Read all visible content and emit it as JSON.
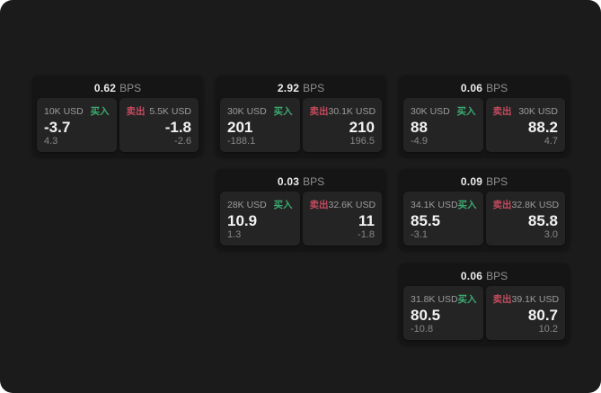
{
  "labels": {
    "bps": "BPS",
    "buy": "买入",
    "sell": "卖出"
  },
  "colors": {
    "page_bg": "#1b1b1b",
    "card_bg": "#151515",
    "panel_bg": "#242424",
    "buy_accent": "#3caa70",
    "sell_accent": "#c54a5e",
    "primary_text": "#f2f2f2",
    "muted_text": "#8f8f8f"
  },
  "cards": [
    {
      "col": 0,
      "row": 0,
      "bps_value": "0.62",
      "buy": {
        "size": "10K USD",
        "price": "-3.7",
        "delta": "4.3"
      },
      "sell": {
        "size": "5.5K USD",
        "price": "-1.8",
        "delta": "-2.6"
      }
    },
    {
      "col": 1,
      "row": 0,
      "bps_value": "2.92",
      "buy": {
        "size": "30K USD",
        "price": "201",
        "delta": "-188.1"
      },
      "sell": {
        "size": "30.1K USD",
        "price": "210",
        "delta": "196.5"
      }
    },
    {
      "col": 2,
      "row": 0,
      "bps_value": "0.06",
      "buy": {
        "size": "30K USD",
        "price": "88",
        "delta": "-4.9"
      },
      "sell": {
        "size": "30K USD",
        "price": "88.2",
        "delta": "4.7"
      }
    },
    {
      "col": 1,
      "row": 1,
      "bps_value": "0.03",
      "buy": {
        "size": "28K USD",
        "price": "10.9",
        "delta": "1.3"
      },
      "sell": {
        "size": "32.6K USD",
        "price": "11",
        "delta": "-1.8"
      }
    },
    {
      "col": 2,
      "row": 1,
      "bps_value": "0.09",
      "buy": {
        "size": "34.1K USD",
        "price": "85.5",
        "delta": "-3.1"
      },
      "sell": {
        "size": "32.8K USD",
        "price": "85.8",
        "delta": "3.0"
      }
    },
    {
      "col": 2,
      "row": 2,
      "bps_value": "0.06",
      "buy": {
        "size": "31.8K USD",
        "price": "80.5",
        "delta": "-10.8"
      },
      "sell": {
        "size": "39.1K USD",
        "price": "80.7",
        "delta": "10.2"
      }
    }
  ]
}
